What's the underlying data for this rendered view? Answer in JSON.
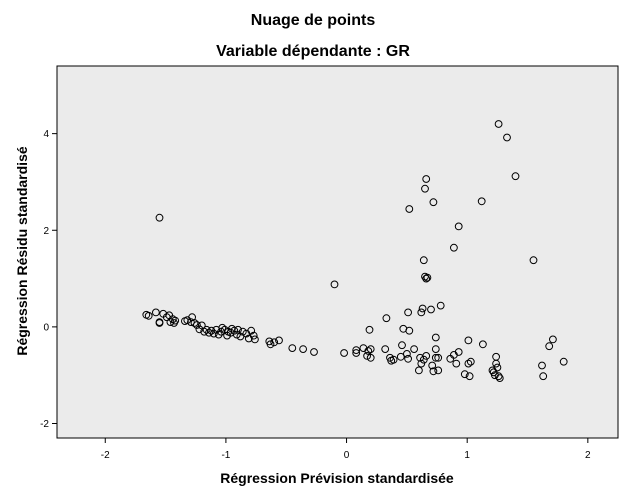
{
  "chart_data": {
    "type": "scatter",
    "title": "Nuage de points",
    "subtitle": "Variable dépendante : GR",
    "xlabel": "Régression Prévision standardisée",
    "ylabel": "Régression Résidu standardisé",
    "xlim": [
      -2.4,
      2.25
    ],
    "ylim": [
      -2.3,
      5.4
    ],
    "xticks": [
      -2,
      -1,
      0,
      1,
      2
    ],
    "yticks": [
      -2,
      0,
      2,
      4
    ],
    "xtick_labels": [
      "-2",
      "-1",
      "0",
      "1",
      "2"
    ],
    "ytick_labels": [
      "-2",
      "0",
      "2",
      "4"
    ],
    "grid": false,
    "plot_background": "#ebebeb",
    "marker": "open-circle",
    "marker_color": "#000000",
    "series": [
      {
        "points": [
          [
            -1.66,
            0.25
          ],
          [
            -1.64,
            0.23
          ],
          [
            -1.58,
            0.3
          ],
          [
            -1.55,
            0.1
          ],
          [
            -1.55,
            0.08
          ],
          [
            -1.52,
            0.27
          ],
          [
            -1.49,
            0.2
          ],
          [
            -1.47,
            0.24
          ],
          [
            -1.46,
            0.1
          ],
          [
            -1.44,
            0.16
          ],
          [
            -1.43,
            0.08
          ],
          [
            -1.42,
            0.13
          ],
          [
            -1.34,
            0.12
          ],
          [
            -1.32,
            0.14
          ],
          [
            -1.29,
            0.1
          ],
          [
            -1.28,
            0.2
          ],
          [
            -1.26,
            0.08
          ],
          [
            -1.24,
            0.04
          ],
          [
            -1.22,
            -0.05
          ],
          [
            -1.2,
            0.03
          ],
          [
            -1.18,
            -0.1
          ],
          [
            -1.16,
            -0.06
          ],
          [
            -1.14,
            -0.12
          ],
          [
            -1.12,
            -0.08
          ],
          [
            -1.1,
            -0.14
          ],
          [
            -1.08,
            -0.06
          ],
          [
            -1.06,
            -0.16
          ],
          [
            -1.04,
            -0.1
          ],
          [
            -1.03,
            -0.02
          ],
          [
            -1.01,
            -0.06
          ],
          [
            -0.99,
            -0.18
          ],
          [
            -0.98,
            -0.1
          ],
          [
            -0.96,
            -0.12
          ],
          [
            -0.95,
            -0.04
          ],
          [
            -0.93,
            -0.08
          ],
          [
            -0.91,
            -0.16
          ],
          [
            -0.9,
            -0.06
          ],
          [
            -0.88,
            -0.2
          ],
          [
            -0.86,
            -0.1
          ],
          [
            -0.83,
            -0.14
          ],
          [
            -0.81,
            -0.24
          ],
          [
            -0.79,
            -0.08
          ],
          [
            -0.77,
            -0.18
          ],
          [
            -0.76,
            -0.26
          ],
          [
            -0.64,
            -0.3
          ],
          [
            -0.63,
            -0.36
          ],
          [
            -0.6,
            -0.32
          ],
          [
            -0.56,
            -0.28
          ],
          [
            -0.45,
            -0.44
          ],
          [
            -0.36,
            -0.46
          ],
          [
            -0.27,
            -0.52
          ],
          [
            -0.02,
            -0.54
          ],
          [
            0.08,
            -0.54
          ],
          [
            0.08,
            -0.48
          ],
          [
            0.14,
            -0.44
          ],
          [
            0.17,
            -0.6
          ],
          [
            0.18,
            -0.5
          ],
          [
            0.2,
            -0.46
          ],
          [
            0.2,
            -0.64
          ],
          [
            0.32,
            -0.46
          ],
          [
            0.36,
            -0.64
          ],
          [
            0.37,
            -0.7
          ],
          [
            0.39,
            -0.68
          ],
          [
            0.45,
            -0.62
          ],
          [
            0.46,
            -0.38
          ],
          [
            0.5,
            -0.56
          ],
          [
            0.51,
            -0.66
          ],
          [
            0.56,
            -0.46
          ],
          [
            0.6,
            -0.9
          ],
          [
            0.61,
            -0.64
          ],
          [
            0.62,
            -0.76
          ],
          [
            0.64,
            -0.68
          ],
          [
            0.66,
            -0.6
          ],
          [
            0.71,
            -0.8
          ],
          [
            0.72,
            -0.92
          ],
          [
            0.74,
            -0.46
          ],
          [
            0.74,
            -0.64
          ],
          [
            0.76,
            -0.64
          ],
          [
            0.76,
            -0.9
          ],
          [
            0.86,
            -0.66
          ],
          [
            0.89,
            -0.58
          ],
          [
            0.91,
            -0.76
          ],
          [
            0.93,
            -0.52
          ],
          [
            0.98,
            -0.98
          ],
          [
            1.01,
            -0.76
          ],
          [
            1.02,
            -1.02
          ],
          [
            1.03,
            -0.72
          ],
          [
            1.13,
            -0.36
          ],
          [
            1.21,
            -0.9
          ],
          [
            1.22,
            -0.94
          ],
          [
            1.23,
            -1.0
          ],
          [
            1.24,
            -0.76
          ],
          [
            1.25,
            -0.84
          ],
          [
            1.26,
            -1.02
          ],
          [
            1.27,
            -1.06
          ],
          [
            1.24,
            -0.62
          ],
          [
            1.62,
            -0.8
          ],
          [
            1.63,
            -1.02
          ],
          [
            1.68,
            -0.4
          ],
          [
            1.71,
            -0.26
          ],
          [
            1.8,
            -0.72
          ],
          [
            0.74,
            -0.22
          ],
          [
            1.01,
            -0.28
          ],
          [
            0.19,
            -0.06
          ],
          [
            0.47,
            -0.04
          ],
          [
            0.52,
            -0.08
          ],
          [
            0.33,
            0.18
          ],
          [
            0.51,
            0.3
          ],
          [
            0.62,
            0.3
          ],
          [
            0.63,
            0.38
          ],
          [
            0.7,
            0.36
          ],
          [
            0.78,
            0.44
          ],
          [
            -0.1,
            0.88
          ],
          [
            0.64,
            1.38
          ],
          [
            0.65,
            1.04
          ],
          [
            0.66,
            1.0
          ],
          [
            0.67,
            1.02
          ],
          [
            0.89,
            1.64
          ],
          [
            0.93,
            2.08
          ],
          [
            1.12,
            2.6
          ],
          [
            1.55,
            1.38
          ],
          [
            0.52,
            2.44
          ],
          [
            0.72,
            2.58
          ],
          [
            0.65,
            2.86
          ],
          [
            0.66,
            3.06
          ],
          [
            1.4,
            3.12
          ],
          [
            1.33,
            3.92
          ],
          [
            1.26,
            4.2
          ],
          [
            -1.55,
            2.26
          ]
        ]
      }
    ]
  }
}
